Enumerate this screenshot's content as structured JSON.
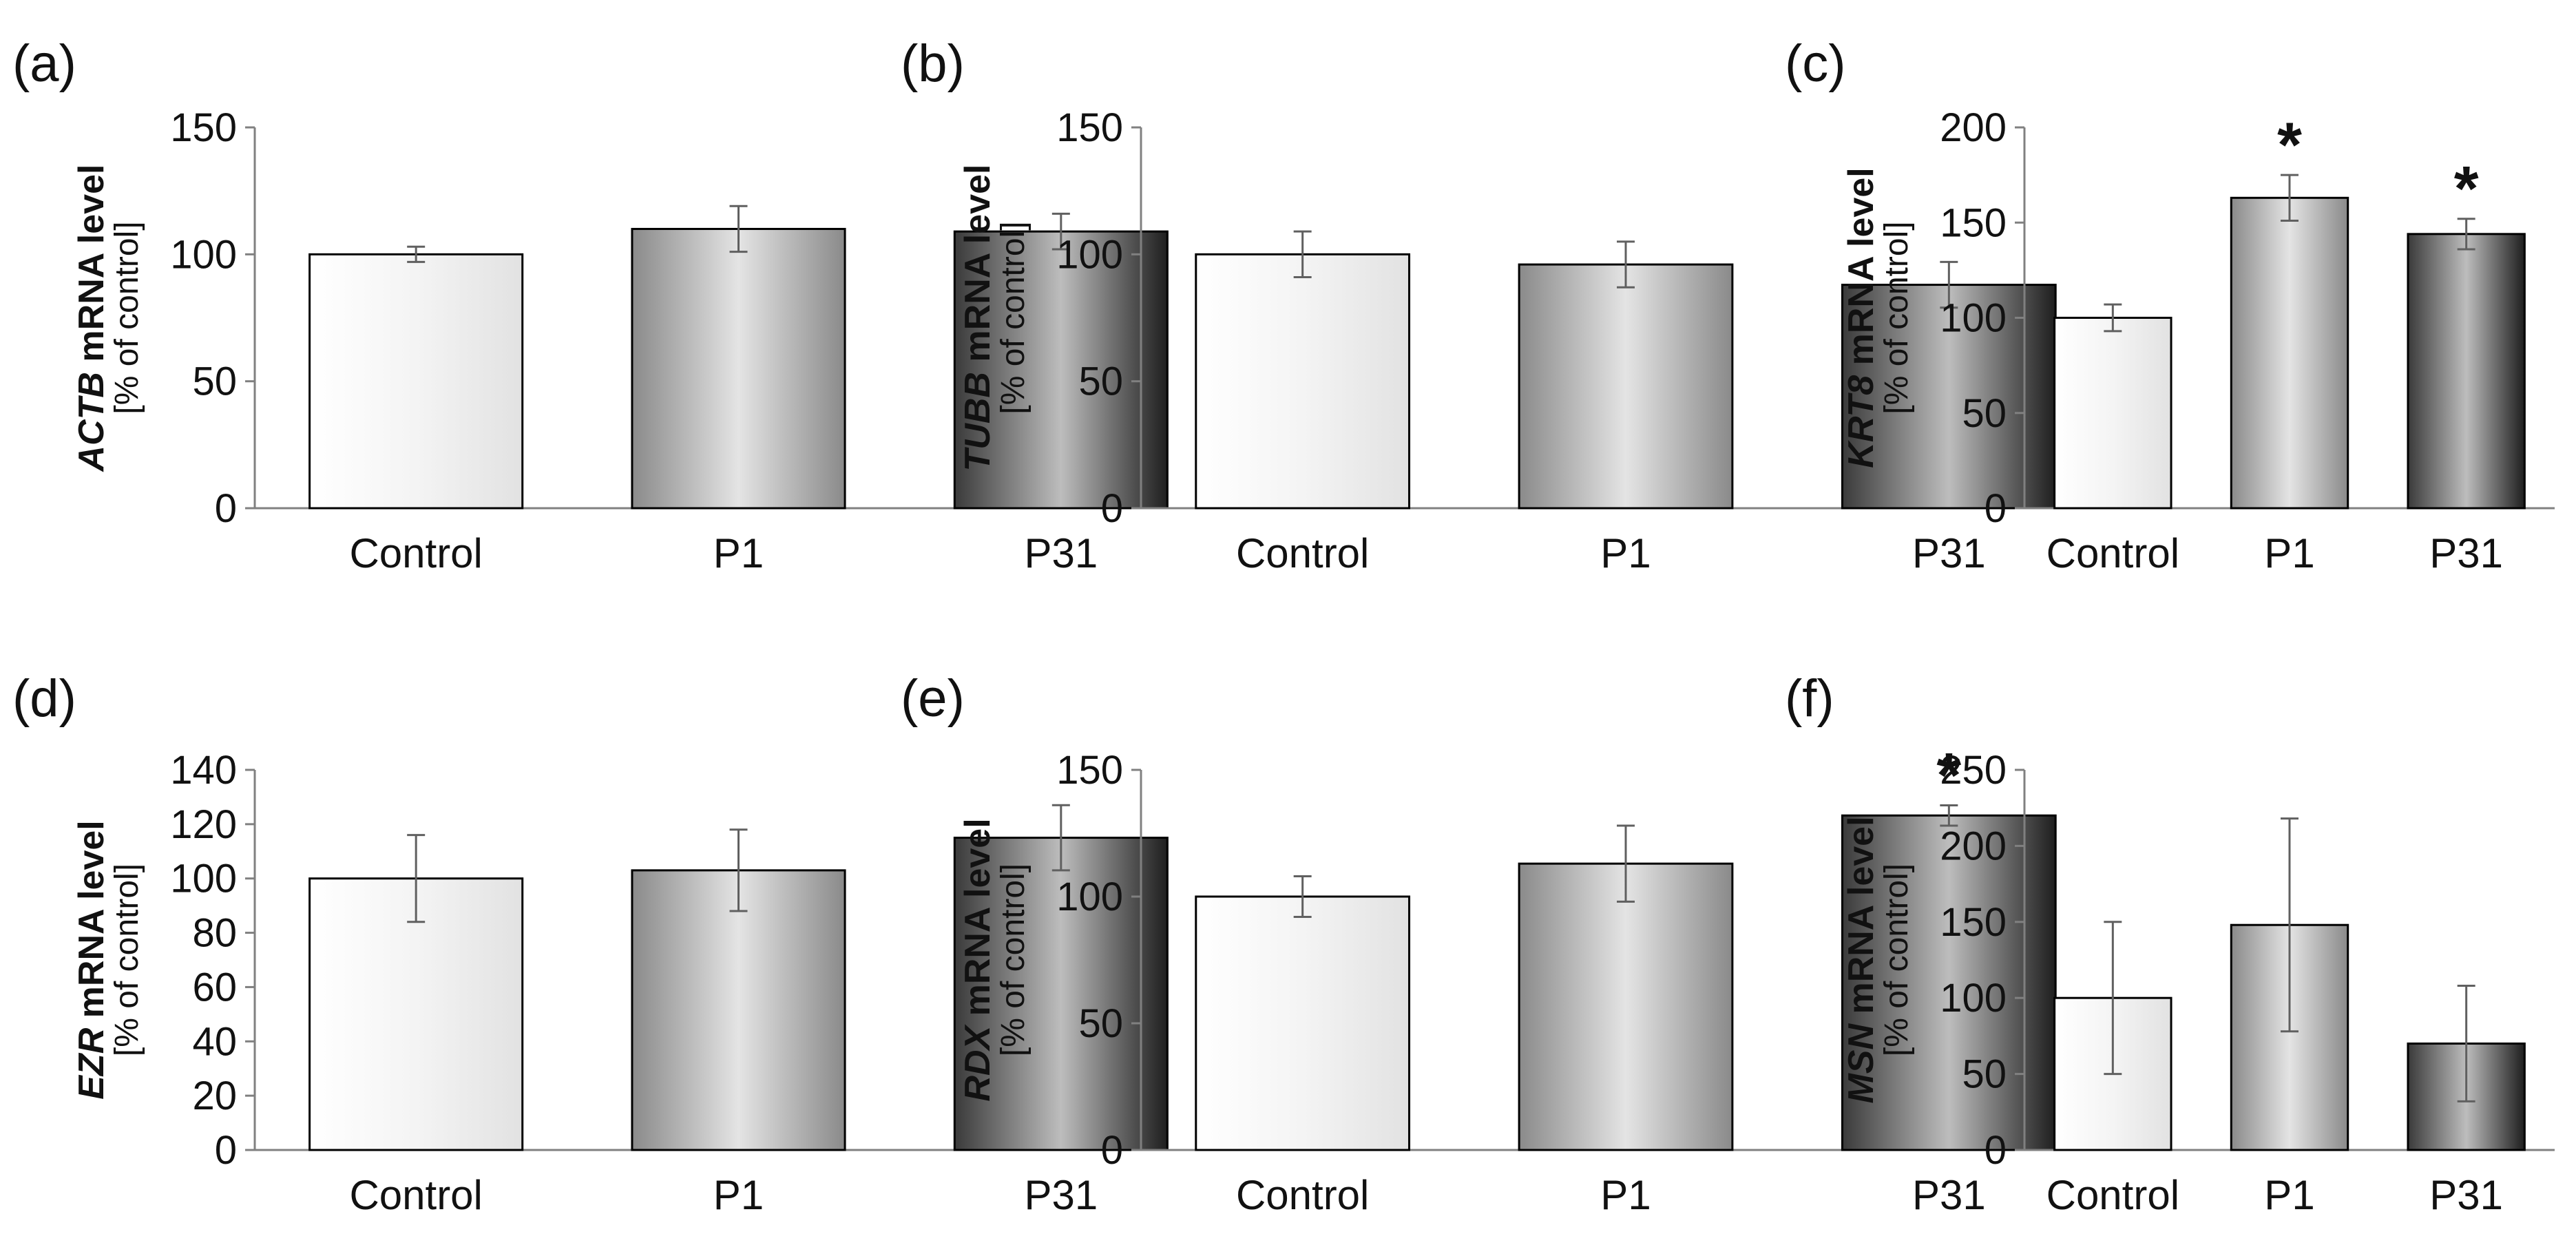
{
  "colors": {
    "control": [
      "#ffffff",
      "#f4f4f4",
      "#e2e2e2"
    ],
    "p1": [
      "#8a8a8a",
      "#e4e4e4",
      "#8a8a8a"
    ],
    "p31": [
      "#3a3a3a",
      "#bdbdbd",
      "#1e1e1e"
    ],
    "error_bar": "#606060",
    "axis": "#808080",
    "bar_stroke": "#000000"
  },
  "chart_data": [
    {
      "panel": "(a)",
      "type": "bar",
      "gene": "ACTB",
      "ylabel_rest": " mRNA level",
      "ylabel2": "[% of control]",
      "categories": [
        "Control",
        "P1",
        "P31"
      ],
      "values": [
        100,
        110,
        109
      ],
      "errors": [
        3,
        9,
        7
      ],
      "significance": [
        "",
        "",
        ""
      ],
      "ylim": [
        0,
        150
      ],
      "yticks": [
        0,
        50,
        100,
        150
      ],
      "tick_labels": [
        "0",
        "50",
        "100",
        "150"
      ]
    },
    {
      "panel": "(b)",
      "type": "bar",
      "gene": "TUBB",
      "ylabel_rest": " mRNA level",
      "ylabel2": "[% of control]",
      "categories": [
        "Control",
        "P1",
        "P31"
      ],
      "values": [
        100,
        96,
        88
      ],
      "errors": [
        9,
        9,
        9
      ],
      "significance": [
        "",
        "",
        ""
      ],
      "ylim": [
        0,
        150
      ],
      "yticks": [
        0,
        50,
        100,
        150
      ],
      "tick_labels": [
        "0",
        "50",
        "100",
        "150"
      ]
    },
    {
      "panel": "(c)",
      "type": "bar",
      "gene": "KRT8",
      "ylabel_rest": " mRNA level",
      "ylabel2": "[% of control]",
      "categories": [
        "Control",
        "P1",
        "P31"
      ],
      "values": [
        100,
        163,
        144
      ],
      "errors": [
        7,
        12,
        8
      ],
      "significance": [
        "",
        "*",
        "*"
      ],
      "ylim": [
        0,
        200
      ],
      "yticks": [
        0,
        50,
        100,
        150,
        200
      ],
      "tick_labels": [
        "0",
        "50",
        "100",
        "150",
        "200"
      ]
    },
    {
      "panel": "(d)",
      "type": "bar",
      "gene": "EZR",
      "ylabel_rest": " mRNA level",
      "ylabel2": "[% of control]",
      "categories": [
        "Control",
        "P1",
        "P31"
      ],
      "values": [
        100,
        103,
        115
      ],
      "errors": [
        16,
        15,
        12
      ],
      "significance": [
        "",
        "",
        ""
      ],
      "ylim": [
        0,
        140
      ],
      "yticks": [
        0,
        20,
        40,
        60,
        80,
        100,
        120,
        140
      ],
      "tick_labels": [
        "0",
        "20",
        "40",
        "60",
        "80",
        "100",
        "120",
        "140"
      ]
    },
    {
      "panel": "(e)",
      "type": "bar",
      "gene": "RDX",
      "ylabel_rest": " mRNA level",
      "ylabel2": "[% of control]",
      "categories": [
        "Control",
        "P1",
        "P31"
      ],
      "values": [
        100,
        113,
        132
      ],
      "errors": [
        8,
        15,
        4
      ],
      "significance": [
        "",
        "",
        "*"
      ],
      "ylim": [
        0,
        150
      ],
      "yticks": [
        0,
        50,
        100,
        150
      ],
      "tick_labels": [
        "0",
        "50",
        "100",
        "150"
      ]
    },
    {
      "panel": "(f)",
      "type": "bar",
      "gene": "MSN",
      "ylabel_rest": " mRNA level",
      "ylabel2": "[% of control]",
      "categories": [
        "Control",
        "P1",
        "P31"
      ],
      "values": [
        100,
        148,
        70
      ],
      "errors": [
        50,
        70,
        38
      ],
      "significance": [
        "",
        "",
        ""
      ],
      "ylim": [
        0,
        250
      ],
      "yticks": [
        0,
        50,
        100,
        150,
        200,
        250
      ],
      "tick_labels": [
        "0",
        "50",
        "100",
        "150",
        "200",
        "250"
      ]
    }
  ]
}
